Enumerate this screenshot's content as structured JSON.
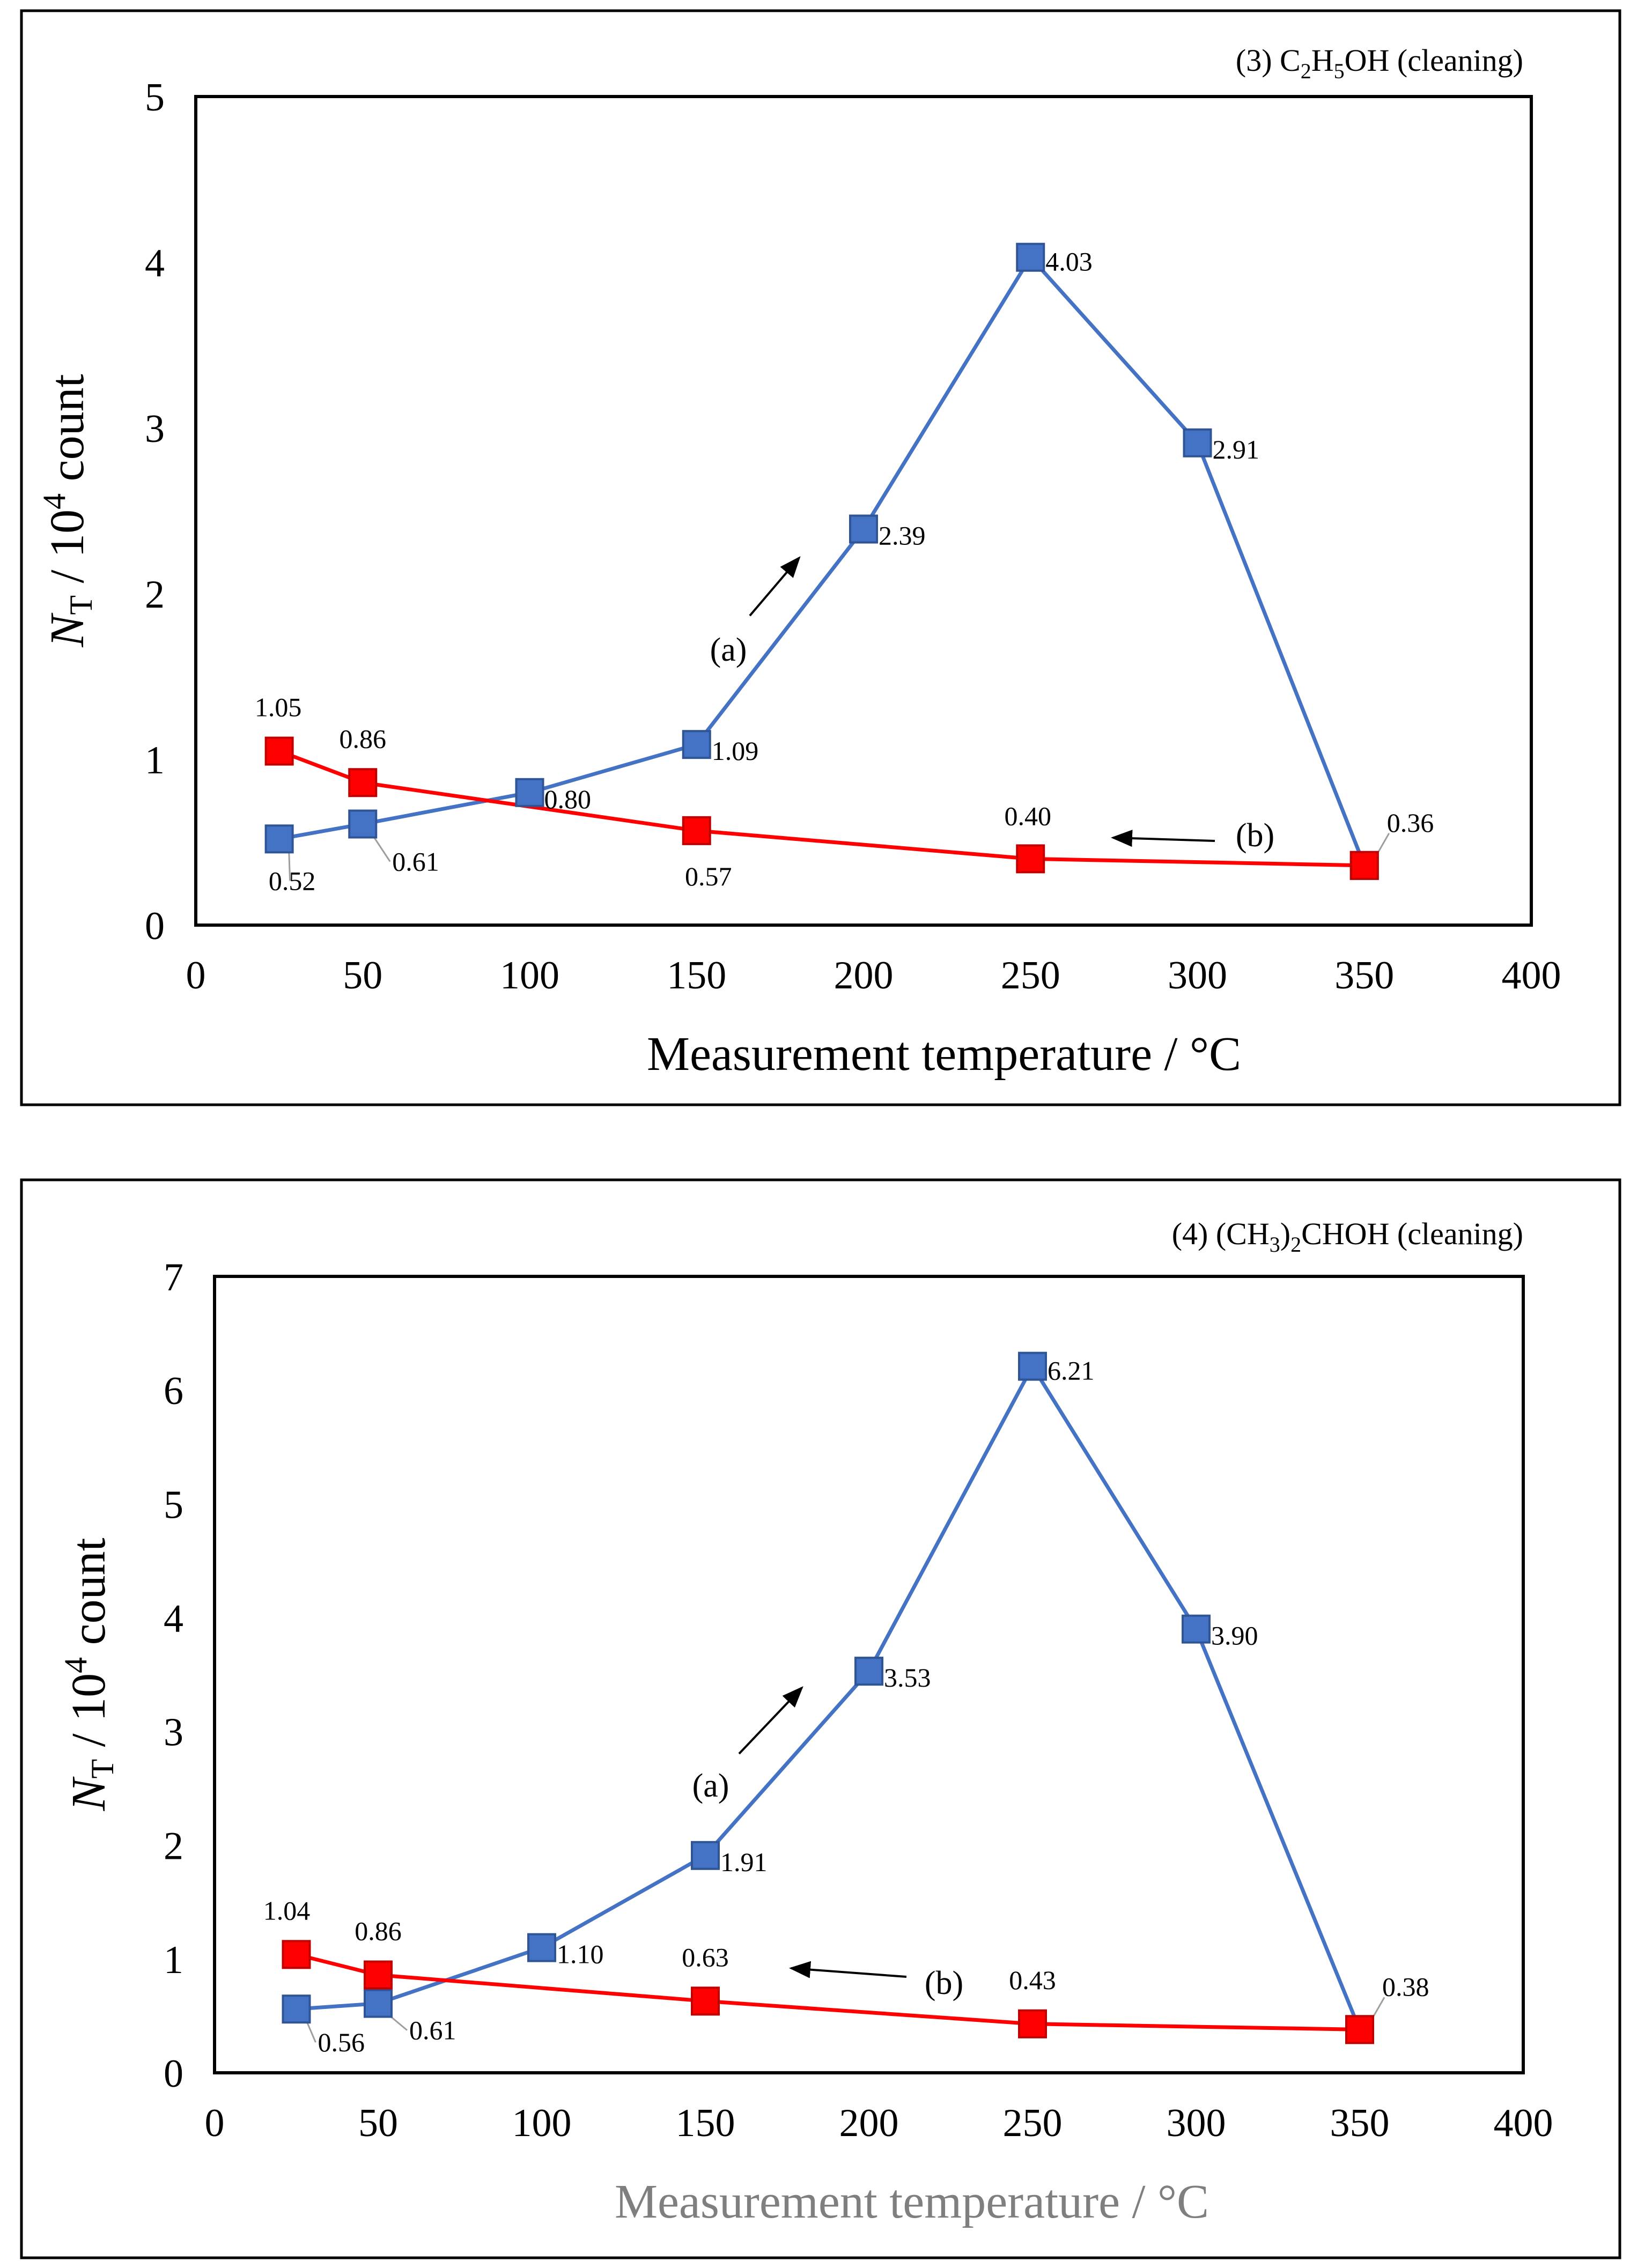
{
  "colors": {
    "blue": "#4472C4",
    "red": "#FF0000",
    "arrow": "#000000"
  },
  "chart_data": [
    {
      "type": "line",
      "title": "(3) C2H5OH (cleaning)",
      "title_parts": {
        "prefix": "(3) C",
        "sub1": "2",
        "mid1": "H",
        "sub2": "5",
        "suffix": "OH (cleaning)"
      },
      "xlabel": "Measurement temperature / °C",
      "ylabel": {
        "italic": "N",
        "sub": "T",
        "rest": " / 10",
        "sup": "4",
        "end": " count"
      },
      "xlim": [
        0,
        400
      ],
      "ylim": [
        0,
        5
      ],
      "xticks": [
        "0",
        "50",
        "100",
        "150",
        "200",
        "250",
        "300",
        "350",
        "400"
      ],
      "yticks": [
        "0",
        "1",
        "2",
        "3",
        "4",
        "5"
      ],
      "series": [
        {
          "name": "(a)",
          "x": [
            25,
            50,
            100,
            150,
            200,
            250,
            300,
            350
          ],
          "y": [
            0.52,
            0.61,
            0.8,
            1.09,
            2.39,
            4.03,
            2.91,
            0.36
          ],
          "labels": [
            "0.52",
            "0.61",
            "0.80",
            "1.09",
            "2.39",
            "4.03",
            "2.91",
            ""
          ]
        },
        {
          "name": "(b)",
          "x": [
            25,
            50,
            150,
            250,
            350
          ],
          "y": [
            1.05,
            0.86,
            0.57,
            0.4,
            0.36
          ],
          "labels": [
            "1.05",
            "0.86",
            "0.57",
            "0.40",
            "0.36"
          ]
        }
      ]
    },
    {
      "type": "line",
      "title": "(4) (CH3)2CHOH (cleaning)",
      "title_parts": {
        "prefix": "(4) (CH",
        "sub1": "3",
        "mid1": ")",
        "sub2": "2",
        "suffix": "CHOH (cleaning)"
      },
      "xlabel": "Measurement temperature / °C",
      "ylabel": {
        "italic": "N",
        "sub": "T",
        "rest": " / 10",
        "sup": "4",
        "end": " count"
      },
      "xlim": [
        0,
        400
      ],
      "ylim": [
        0,
        7
      ],
      "xticks": [
        "0",
        "50",
        "100",
        "150",
        "200",
        "250",
        "300",
        "350",
        "400"
      ],
      "yticks": [
        "0",
        "1",
        "2",
        "3",
        "4",
        "5",
        "6",
        "7"
      ],
      "series": [
        {
          "name": "(a)",
          "x": [
            25,
            50,
            100,
            150,
            200,
            250,
            300,
            350
          ],
          "y": [
            0.56,
            0.61,
            1.1,
            1.91,
            3.53,
            6.21,
            3.9,
            0.38
          ],
          "labels": [
            "0.56",
            "0.61",
            "1.10",
            "1.91",
            "3.53",
            "6.21",
            "3.90",
            ""
          ]
        },
        {
          "name": "(b)",
          "x": [
            25,
            50,
            150,
            250,
            350
          ],
          "y": [
            1.04,
            0.86,
            0.63,
            0.43,
            0.38
          ],
          "labels": [
            "1.04",
            "0.86",
            "0.63",
            "0.43",
            "0.38"
          ]
        }
      ]
    }
  ]
}
